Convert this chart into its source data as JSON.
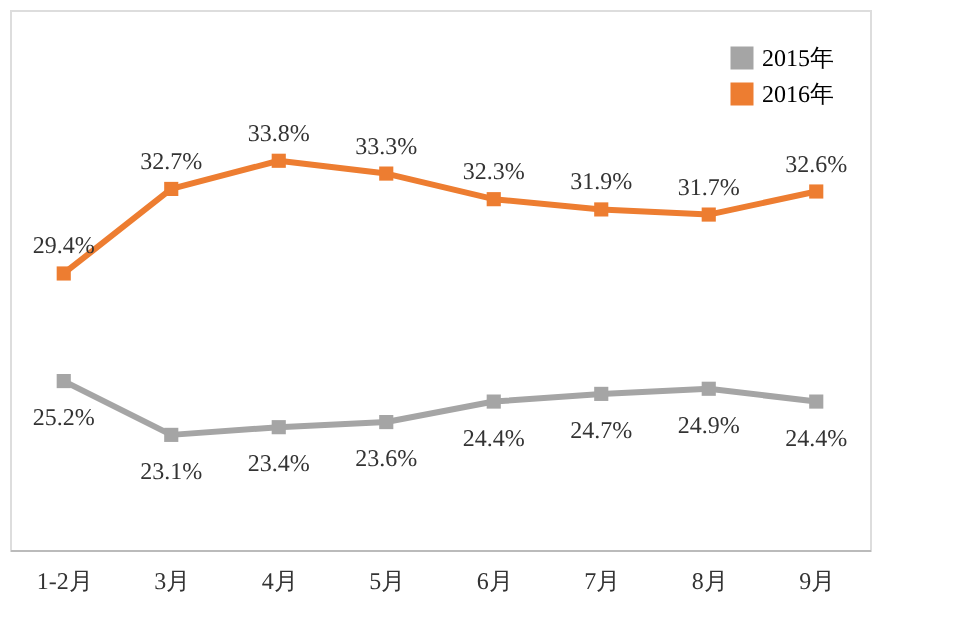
{
  "chart_data": {
    "type": "line",
    "categories": [
      "1-2月",
      "3月",
      "4月",
      "5月",
      "6月",
      "7月",
      "8月",
      "9月"
    ],
    "series": [
      {
        "name": "2015年",
        "color": "#a5a5a5",
        "values": [
          25.2,
          23.1,
          23.4,
          23.6,
          24.4,
          24.7,
          24.9,
          24.4
        ],
        "value_labels": [
          "25.2%",
          "23.1%",
          "23.4%",
          "23.6%",
          "24.4%",
          "24.7%",
          "24.9%",
          "24.4%"
        ]
      },
      {
        "name": "2016年",
        "color": "#ed7d31",
        "values": [
          29.4,
          32.7,
          33.8,
          33.3,
          32.3,
          31.9,
          31.7,
          32.6
        ],
        "value_labels": [
          "29.4%",
          "32.7%",
          "33.8%",
          "33.3%",
          "32.3%",
          "31.9%",
          "31.7%",
          "32.6%"
        ]
      }
    ],
    "legend": "top right",
    "marker": "square",
    "grid": false
  }
}
